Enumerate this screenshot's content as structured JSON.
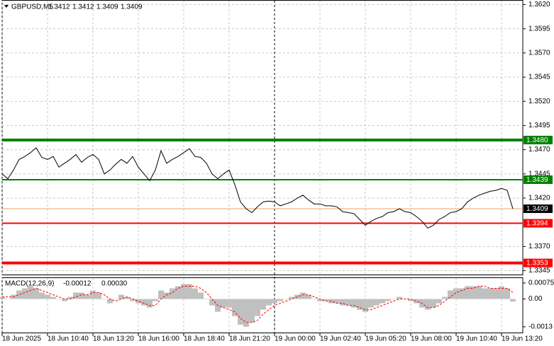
{
  "chart_data": [
    {
      "type": "line",
      "title": "GBPUSD,M5",
      "ohlc": [
        1.3412,
        1.3412,
        1.3409,
        1.3409
      ],
      "categories": [
        "18 Jun 2025",
        null,
        null,
        null,
        null,
        null,
        null,
        null,
        "18 Jun 10:40",
        null,
        null,
        null,
        null,
        null,
        null,
        null,
        "18 Jun 13:20",
        null,
        null,
        null,
        null,
        null,
        null,
        null,
        "18 Jun 16:00",
        null,
        null,
        null,
        null,
        null,
        null,
        null,
        "18 Jun 18:40",
        null,
        null,
        null,
        null,
        null,
        null,
        null,
        "18 Jun 21:20",
        null,
        null,
        null,
        null,
        null,
        null,
        null,
        "19 Jun 00:00",
        null,
        null,
        null,
        null,
        null,
        null,
        null,
        "19 Jun 02:40",
        null,
        null,
        null,
        null,
        null,
        null,
        null,
        "19 Jun 05:20",
        null,
        null,
        null,
        null,
        null,
        null,
        null,
        "19 Jun 08:00",
        null,
        null,
        null,
        null,
        null,
        null,
        null,
        "19 Jun 10:40",
        null,
        null,
        null,
        null,
        null,
        null,
        null,
        "19 Jun 13:20",
        null,
        null
      ],
      "series": [
        {
          "color": "#000000",
          "values": [
            1.3445,
            1.344,
            1.3449,
            1.346,
            1.3463,
            1.3467,
            1.3472,
            1.3462,
            1.346,
            1.3463,
            1.3452,
            1.3456,
            1.346,
            1.3465,
            1.3457,
            1.3462,
            1.3465,
            1.346,
            1.3445,
            1.3449,
            1.3455,
            1.346,
            1.3456,
            1.3463,
            1.3452,
            1.3445,
            1.3438,
            1.3449,
            1.3469,
            1.3456,
            1.346,
            1.3463,
            1.3467,
            1.3471,
            1.3463,
            1.3462,
            1.3456,
            1.3445,
            1.344,
            1.3445,
            1.3449,
            1.3434,
            1.3416,
            1.3409,
            1.3405,
            1.3411,
            1.3416,
            1.3417,
            1.3416,
            1.3412,
            1.3414,
            1.3416,
            1.342,
            1.3423,
            1.3418,
            1.3414,
            1.3414,
            1.3412,
            1.3412,
            1.3411,
            1.3406,
            1.3405,
            1.3404,
            1.3398,
            1.3392,
            1.3396,
            1.3399,
            1.3401,
            1.3405,
            1.3406,
            1.3409,
            1.3406,
            1.3405,
            1.3401,
            1.3396,
            1.3389,
            1.3392,
            1.3398,
            1.3401,
            1.3405,
            1.3406,
            1.3409,
            1.3416,
            1.342,
            1.3423,
            1.3425,
            1.3427,
            1.3428,
            1.343,
            1.3428,
            1.3409
          ]
        }
      ],
      "ylim": [
        1.3341,
        1.3624
      ],
      "yticks": [
        {
          "value": 1.362,
          "label": "1.3620"
        },
        1.3595,
        {
          "value": 1.357,
          "label": "1.3570"
        },
        1.3545,
        {
          "value": 1.352,
          "label": "1.3520"
        },
        1.3495,
        {
          "value": 1.347,
          "label": "1.3470"
        },
        1.3445,
        {
          "value": 1.342,
          "label": "1.3420"
        },
        {
          "value": 1.337,
          "label": "1.3370"
        },
        1.3345
      ],
      "grid": true,
      "separator_index": 48,
      "levels": [
        {
          "value": 1.348,
          "label": "1.3480",
          "color": "#008000",
          "weight": "thick"
        },
        {
          "value": 1.3439,
          "color": "#008000",
          "weight": "thin"
        },
        {
          "value": 1.3394,
          "color": "#ff0000",
          "weight": "thin"
        },
        {
          "value": 1.3353,
          "color": "#ff0000",
          "weight": "thick"
        }
      ],
      "current_price": 1.3409,
      "current_color": "#e9a06a"
    },
    {
      "type": "macd",
      "name": "MACD(12,26,9)",
      "values": [
        -0.00012,
        0.0003
      ],
      "value_labels": [
        "-0.00012",
        "0.00030"
      ],
      "ylim": [
        -0.00157,
        0.00098
      ],
      "yticks": [
        0.00075,
        {
          "value": 0,
          "label": "0.00"
        },
        -0.0013
      ],
      "histogram": {
        "color": "#c0c0c0",
        "values": [
          0.0001,
          0.0,
          0.0002,
          0.0004,
          0.0005,
          0.0006,
          0.0005,
          0.0003,
          0.0002,
          0.0001,
          0.0,
          -0.0001,
          0.0001,
          0.0003,
          0.0003,
          0.0002,
          0.0004,
          0.0003,
          0.0,
          -0.0002,
          0.0,
          0.0002,
          0.0001,
          -0.0001,
          -0.0002,
          -0.0003,
          -0.0004,
          -0.0001,
          0.0004,
          0.0003,
          0.0005,
          0.0006,
          0.0007,
          0.0007,
          0.0005,
          0.0003,
          0.0,
          -0.0003,
          -0.0006,
          -0.0004,
          -0.0004,
          -0.0008,
          -0.0012,
          -0.0013,
          -0.0011,
          -0.0008,
          -0.0005,
          -0.0003,
          -0.0002,
          -0.0001,
          0.0,
          0.0001,
          0.0002,
          0.0003,
          0.0002,
          0.0,
          -0.0001,
          -0.0001,
          -0.0002,
          -0.0002,
          -0.0003,
          -0.0003,
          -0.0004,
          -0.0005,
          -0.0006,
          -0.0004,
          -0.0003,
          -0.0002,
          -0.0001,
          0.0,
          0.0001,
          0.0,
          -0.0001,
          -0.0002,
          -0.0004,
          -0.0005,
          -0.0004,
          -0.0002,
          0.0001,
          0.0004,
          0.0005,
          0.0005,
          0.0006,
          0.0006,
          0.0006,
          0.0005,
          0.0005,
          0.0005,
          0.0006,
          0.0005,
          -0.00012
        ]
      },
      "signal": {
        "color": "#ff0000",
        "values": [
          0.0001,
          0.0001,
          0.0001,
          0.0002,
          0.0003,
          0.0004,
          0.0005,
          0.0004,
          0.0003,
          0.0002,
          0.0001,
          0.0,
          0.0,
          0.0001,
          0.0002,
          0.0002,
          0.0003,
          0.0003,
          0.0002,
          0.0,
          -0.0001,
          0.0,
          0.0001,
          0.0,
          -0.0001,
          -0.0002,
          -0.0003,
          -0.0003,
          0.0,
          0.0002,
          0.0003,
          0.0005,
          0.0006,
          0.0006,
          0.0006,
          0.0005,
          0.0003,
          0.0,
          -0.0003,
          -0.0004,
          -0.0005,
          -0.0006,
          -0.0009,
          -0.0011,
          -0.0011,
          -0.001,
          -0.0007,
          -0.0005,
          -0.0003,
          -0.0002,
          -0.0001,
          0.0,
          0.0001,
          0.0002,
          0.0002,
          0.0001,
          0.0,
          -0.0001,
          -0.0001,
          -0.0002,
          -0.0002,
          -0.0003,
          -0.0003,
          -0.0004,
          -0.0005,
          -0.0005,
          -0.0004,
          -0.0003,
          -0.0002,
          -0.0001,
          0.0,
          0.0,
          0.0,
          -0.0001,
          -0.0002,
          -0.0004,
          -0.0004,
          -0.0003,
          -0.0001,
          0.0001,
          0.0003,
          0.0004,
          0.0005,
          0.0005,
          0.0006,
          0.0006,
          0.0005,
          0.0005,
          0.0005,
          0.0005,
          0.0003
        ]
      }
    }
  ]
}
